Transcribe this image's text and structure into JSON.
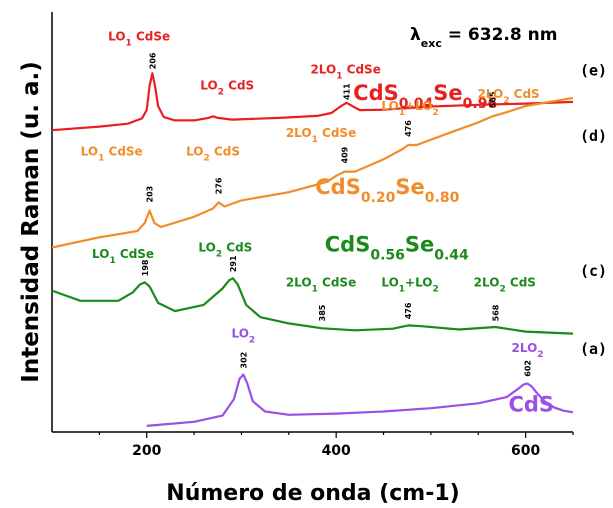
{
  "chart_data": {
    "type": "line",
    "title": "",
    "xlabel": "Número de onda (cm-1)",
    "ylabel": "Intensidad Raman (u. a.)",
    "xlim": [
      100,
      650
    ],
    "x_ticks": [
      "200",
      "400",
      "600"
    ],
    "x_tick_values": [
      200,
      400,
      600
    ],
    "ylim": [
      0,
      100
    ],
    "grid": false,
    "excitation": {
      "symbol": "λ",
      "subscript": "exc",
      "text": " = 632.8 nm"
    },
    "series": [
      {
        "tag": "(e)",
        "color": "#e82020",
        "composition": "CdS0.04Se0.96",
        "composition_parts": [
          [
            "CdS",
            ""
          ],
          [
            "0.04",
            "sub"
          ],
          [
            "Se",
            ""
          ],
          [
            "0.96",
            "sub"
          ]
        ],
        "x": [
          100,
          150,
          180,
          195,
          200,
          203,
          206,
          209,
          212,
          218,
          230,
          250,
          265,
          270,
          275,
          290,
          340,
          380,
          395,
          405,
          411,
          417,
          425,
          450,
          500,
          550,
          600,
          650
        ],
        "y": [
          73.6,
          74.5,
          75.2,
          76.5,
          78.5,
          84.5,
          87.5,
          84.0,
          79.5,
          76.8,
          76.0,
          76.0,
          76.6,
          77.0,
          76.6,
          76.2,
          76.6,
          77.1,
          77.8,
          79.5,
          80.3,
          79.5,
          78.5,
          78.6,
          79.4,
          79.8,
          80.1,
          80.5
        ],
        "peaks": [
          {
            "x": 206,
            "label": "206",
            "y": 88
          },
          {
            "x": 411,
            "label": "411",
            "y": 80.5
          }
        ],
        "annotations": [
          {
            "parts": [
              [
                "LO",
                ""
              ],
              [
                "1",
                "sub"
              ],
              [
                " CdSe",
                ""
              ]
            ],
            "x": 192,
            "y": 95.5
          },
          {
            "parts": [
              [
                "LO",
                ""
              ],
              [
                "2",
                "sub"
              ],
              [
                " CdS",
                ""
              ]
            ],
            "x": 285,
            "y": 83.5
          },
          {
            "parts": [
              [
                "2LO",
                ""
              ],
              [
                "1",
                "sub"
              ],
              [
                " CdSe",
                ""
              ]
            ],
            "x": 410,
            "y": 87.5
          }
        ]
      },
      {
        "tag": "(d)",
        "color": "#f28c28",
        "composition": "CdS0.20Se0.80",
        "composition_parts": [
          [
            "CdS",
            ""
          ],
          [
            "0.20",
            "sub"
          ],
          [
            "Se",
            ""
          ],
          [
            "0.80",
            "sub"
          ]
        ],
        "x": [
          100,
          150,
          190,
          198,
          203,
          208,
          215,
          250,
          270,
          276,
          282,
          300,
          350,
          390,
          400,
          409,
          420,
          450,
          470,
          476,
          485,
          520,
          550,
          565,
          580,
          600,
          625,
          650
        ],
        "y": [
          45.0,
          47.5,
          49.0,
          51.0,
          54.0,
          51.0,
          50.0,
          52.5,
          54.5,
          56.0,
          55.0,
          56.5,
          58.5,
          61.0,
          62.5,
          63.5,
          63.5,
          66.5,
          69.0,
          70.0,
          70.0,
          73.0,
          75.5,
          77.0,
          78.0,
          79.5,
          80.5,
          81.5
        ],
        "peaks": [
          {
            "x": 203,
            "label": "203",
            "y": 55.5
          },
          {
            "x": 276,
            "label": "276",
            "y": 57.5
          },
          {
            "x": 409,
            "label": "409",
            "y": 65
          },
          {
            "x": 476,
            "label": "476",
            "y": 71.5
          },
          {
            "x": 565,
            "label": "565",
            "y": 78.5
          }
        ],
        "annotations": [
          {
            "parts": [
              [
                "LO",
                ""
              ],
              [
                "1",
                "sub"
              ],
              [
                " CdSe",
                ""
              ]
            ],
            "x": 163,
            "y": 67.5
          },
          {
            "parts": [
              [
                "LO",
                ""
              ],
              [
                "2",
                "sub"
              ],
              [
                " CdS",
                ""
              ]
            ],
            "x": 270,
            "y": 67.5
          },
          {
            "parts": [
              [
                "2LO",
                ""
              ],
              [
                "1",
                "sub"
              ],
              [
                " CdSe",
                ""
              ]
            ],
            "x": 384,
            "y": 72
          },
          {
            "parts": [
              [
                "LO",
                ""
              ],
              [
                "1",
                "sub"
              ],
              [
                "+LO",
                ""
              ],
              [
                "2",
                "sub"
              ]
            ],
            "x": 478,
            "y": 78.5
          },
          {
            "parts": [
              [
                "2LO",
                ""
              ],
              [
                "2",
                "sub"
              ],
              [
                " CdS",
                ""
              ]
            ],
            "x": 582,
            "y": 81.5
          }
        ]
      },
      {
        "tag": "(c)",
        "color": "#1a8a1a",
        "composition": "CdS0.56Se0.44",
        "composition_parts": [
          [
            "CdS",
            ""
          ],
          [
            "0.56",
            "sub"
          ],
          [
            "Se",
            ""
          ],
          [
            "0.44",
            "sub"
          ]
        ],
        "x": [
          100,
          130,
          170,
          185,
          193,
          198,
          203,
          212,
          230,
          260,
          280,
          287,
          291,
          296,
          305,
          320,
          350,
          385,
          420,
          460,
          476,
          490,
          530,
          568,
          600,
          650
        ],
        "y": [
          34.5,
          32.0,
          32.0,
          34.0,
          36.0,
          36.5,
          35.5,
          31.5,
          29.5,
          31.0,
          35.0,
          37.0,
          37.5,
          36.0,
          31.0,
          28.0,
          26.5,
          25.3,
          24.8,
          25.2,
          26.0,
          25.8,
          25.0,
          25.6,
          24.5,
          24.0
        ],
        "peaks": [
          {
            "x": 198,
            "label": "198",
            "y": 37.5
          },
          {
            "x": 291,
            "label": "291",
            "y": 38.5
          },
          {
            "x": 385,
            "label": "385",
            "y": 26.5
          },
          {
            "x": 476,
            "label": "476",
            "y": 27
          },
          {
            "x": 568,
            "label": "568",
            "y": 26.5
          }
        ],
        "annotations": [
          {
            "parts": [
              [
                "LO",
                ""
              ],
              [
                "1",
                "sub"
              ],
              [
                " CdSe",
                ""
              ]
            ],
            "x": 175,
            "y": 42.5
          },
          {
            "parts": [
              [
                "LO",
                ""
              ],
              [
                "2",
                "sub"
              ],
              [
                " CdS",
                ""
              ]
            ],
            "x": 283,
            "y": 44
          },
          {
            "parts": [
              [
                "2LO",
                ""
              ],
              [
                "1",
                "sub"
              ],
              [
                " CdSe",
                ""
              ]
            ],
            "x": 384,
            "y": 35.5
          },
          {
            "parts": [
              [
                "LO",
                ""
              ],
              [
                "1",
                "sub"
              ],
              [
                "+LO",
                ""
              ],
              [
                "2",
                "sub"
              ]
            ],
            "x": 478,
            "y": 35.5
          },
          {
            "parts": [
              [
                "2LO",
                ""
              ],
              [
                "2",
                "sub"
              ],
              [
                " CdS",
                ""
              ]
            ],
            "x": 578,
            "y": 35.5
          }
        ]
      },
      {
        "tag": "(a)",
        "color": "#9a4fe6",
        "composition": "CdS",
        "composition_parts": [
          [
            "CdS",
            ""
          ]
        ],
        "x": [
          200,
          250,
          280,
          292,
          298,
          302,
          306,
          312,
          325,
          350,
          400,
          450,
          500,
          550,
          580,
          592,
          598,
          602,
          606,
          612,
          620,
          630,
          640,
          650
        ],
        "y": [
          1.5,
          2.5,
          4.0,
          8.0,
          13.0,
          14.0,
          12.0,
          7.5,
          5.0,
          4.2,
          4.5,
          5.0,
          5.8,
          7.0,
          8.5,
          10.5,
          11.6,
          11.8,
          11.2,
          9.5,
          7.5,
          6.0,
          5.2,
          4.8
        ],
        "peaks": [
          {
            "x": 302,
            "label": "302",
            "y": 15
          },
          {
            "x": 602,
            "label": "602",
            "y": 13
          }
        ],
        "annotations": [
          {
            "parts": [
              [
                "LO",
                ""
              ],
              [
                "2",
                "sub"
              ]
            ],
            "x": 302,
            "y": 23
          },
          {
            "parts": [
              [
                "2LO",
                ""
              ],
              [
                "2",
                "sub"
              ]
            ],
            "x": 602,
            "y": 19.5
          }
        ]
      }
    ],
    "composition_positions": [
      [
        570,
        81
      ],
      [
        530,
        58
      ],
      [
        540,
        44
      ],
      [
        630,
        5
      ]
    ],
    "tag_positions": [
      87,
      71,
      38,
      19
    ]
  }
}
